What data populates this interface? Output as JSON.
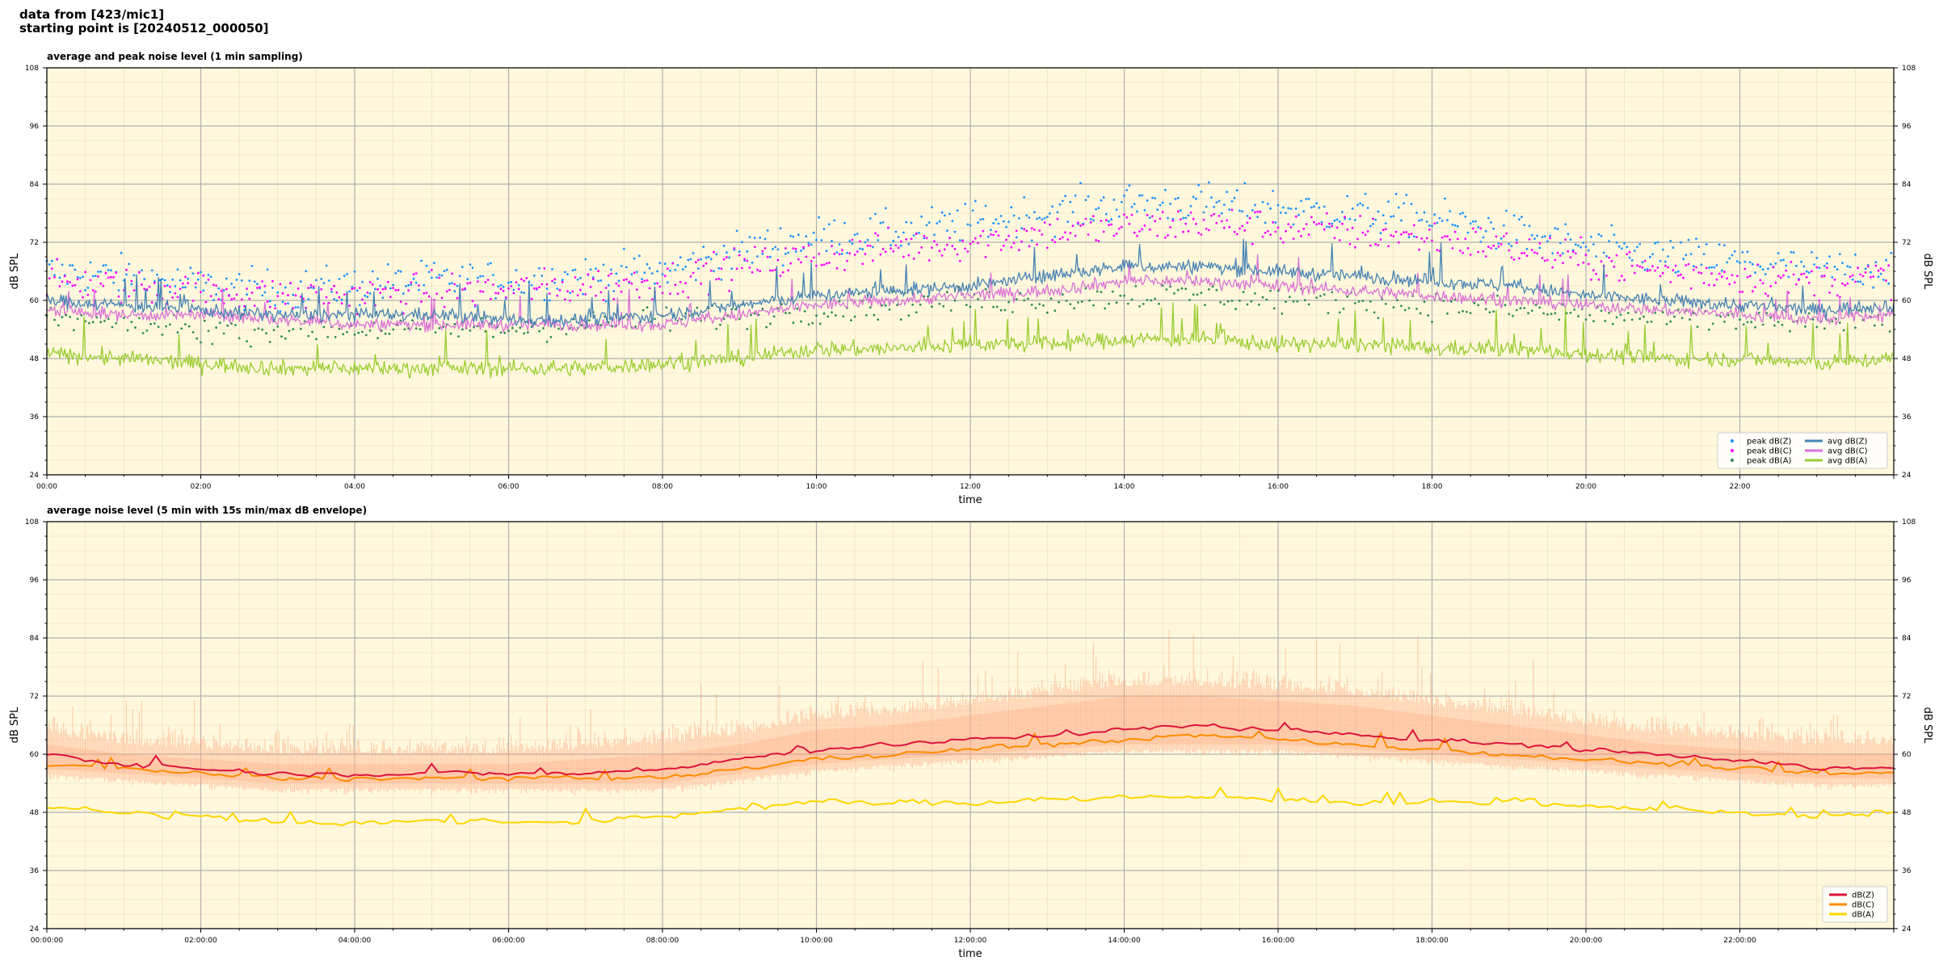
{
  "header": {
    "line1": "data from [423/mic1]",
    "line2": "starting point is [20240512_000050]"
  },
  "colors": {
    "plot_bg": "#fff8dc",
    "peak_z": "#1e90ff",
    "peak_c": "#ff00ff",
    "peak_a": "#2e8b57",
    "avg_z": "#4682b4",
    "avg_c": "#da70d6",
    "avg_a": "#9acd32",
    "dbz": "#dc143c",
    "dbc": "#ff8c00",
    "dba": "#ffd700",
    "envelope": "#ffa07a"
  },
  "chart_data": [
    {
      "type": "line",
      "title": "average and peak noise level (1 min sampling)",
      "xlabel": "time",
      "ylabel": "dB SPL",
      "ylabel_right": "dB SPL",
      "xlim_hours": [
        0,
        24
      ],
      "ylim": [
        24,
        108
      ],
      "yticks": [
        24,
        36,
        48,
        60,
        72,
        84,
        96,
        108
      ],
      "xtick_labels": [
        "00:00",
        "02:00",
        "04:00",
        "06:00",
        "08:00",
        "10:00",
        "12:00",
        "14:00",
        "16:00",
        "18:00",
        "20:00",
        "22:00"
      ],
      "grid": true,
      "legend_position": "lower-right",
      "legend": [
        {
          "label": "peak dB(Z)",
          "kind": "dot",
          "color": "#1e90ff"
        },
        {
          "label": "peak dB(C)",
          "kind": "dot",
          "color": "#ff00ff"
        },
        {
          "label": "peak dB(A)",
          "kind": "dot",
          "color": "#2e8b57"
        },
        {
          "label": "avg dB(Z)",
          "kind": "line",
          "color": "#4682b4"
        },
        {
          "label": "avg dB(C)",
          "kind": "line",
          "color": "#da70d6"
        },
        {
          "label": "avg dB(A)",
          "kind": "line",
          "color": "#9acd32"
        }
      ],
      "hours": [
        0,
        1,
        2,
        3,
        4,
        5,
        6,
        7,
        8,
        9,
        10,
        11,
        12,
        13,
        14,
        15,
        16,
        17,
        18,
        19,
        20,
        21,
        22,
        23,
        24
      ],
      "series": [
        {
          "name": "avg dB(Z)",
          "values": [
            60,
            59,
            58,
            57,
            57,
            57,
            56,
            56,
            57,
            59,
            61,
            62,
            63,
            65,
            67,
            67,
            66,
            65,
            64,
            63,
            61,
            60,
            59,
            58,
            59
          ]
        },
        {
          "name": "avg dB(C)",
          "values": [
            58,
            57,
            57,
            56,
            55,
            55,
            55,
            55,
            55,
            57,
            59,
            60,
            61,
            62,
            64,
            64,
            63,
            62,
            61,
            60,
            59,
            58,
            57,
            56,
            57
          ]
        },
        {
          "name": "avg dB(A)",
          "values": [
            49,
            48,
            47,
            46,
            46,
            46,
            46,
            46,
            47,
            48,
            50,
            50,
            51,
            51,
            52,
            52,
            51,
            51,
            50,
            50,
            49,
            48,
            48,
            47,
            48
          ]
        },
        {
          "name": "peak dB(Z)",
          "values": [
            66,
            65,
            63,
            62,
            63,
            64,
            64,
            65,
            66,
            70,
            73,
            74,
            76,
            78,
            80,
            80,
            79,
            78,
            77,
            74,
            71,
            69,
            68,
            66,
            67
          ]
        },
        {
          "name": "peak dB(C)",
          "values": [
            64,
            63,
            62,
            61,
            61,
            62,
            62,
            63,
            64,
            67,
            69,
            71,
            72,
            74,
            75,
            76,
            75,
            74,
            73,
            71,
            68,
            66,
            65,
            64,
            65
          ]
        },
        {
          "name": "peak dB(A)",
          "values": [
            56,
            55,
            54,
            54,
            54,
            54,
            54,
            55,
            56,
            57,
            58,
            59,
            60,
            60,
            61,
            61,
            60,
            60,
            59,
            58,
            57,
            56,
            56,
            55,
            56
          ]
        }
      ]
    },
    {
      "type": "line",
      "title": "average noise level (5 min with 15s min/max dB envelope)",
      "xlabel": "time",
      "ylabel": "dB SPL",
      "ylabel_right": "dB SPL",
      "xlim_hours": [
        0,
        24
      ],
      "ylim": [
        24,
        108
      ],
      "yticks": [
        24,
        36,
        48,
        60,
        72,
        84,
        96,
        108
      ],
      "xtick_labels": [
        "00:00:00",
        "02:00:00",
        "04:00:00",
        "06:00:00",
        "08:00:00",
        "10:00:00",
        "12:00:00",
        "14:00:00",
        "16:00:00",
        "18:00:00",
        "20:00:00",
        "22:00:00"
      ],
      "grid": true,
      "legend_position": "lower-right",
      "legend": [
        {
          "label": "dB(Z)",
          "kind": "line",
          "color": "#dc143c"
        },
        {
          "label": "dB(C)",
          "kind": "line",
          "color": "#ff8c00"
        },
        {
          "label": "dB(A)",
          "kind": "line",
          "color": "#ffd700"
        }
      ],
      "hours": [
        0,
        1,
        2,
        3,
        4,
        5,
        6,
        7,
        8,
        9,
        10,
        11,
        12,
        13,
        14,
        15,
        16,
        17,
        18,
        19,
        20,
        21,
        22,
        23,
        24
      ],
      "series": [
        {
          "name": "dB(Z)",
          "values": [
            60,
            58,
            57,
            56,
            56,
            56,
            56,
            56,
            57,
            59,
            61,
            62,
            63,
            64,
            65,
            66,
            65,
            64,
            63,
            62,
            61,
            60,
            59,
            57,
            57
          ]
        },
        {
          "name": "dB(C)",
          "values": [
            58,
            57,
            56,
            55,
            55,
            55,
            55,
            55,
            55,
            57,
            59,
            60,
            61,
            62,
            63,
            64,
            63,
            62,
            61,
            60,
            59,
            58,
            57,
            56,
            56
          ]
        },
        {
          "name": "dB(A)",
          "values": [
            49,
            48,
            47,
            46,
            46,
            46,
            46,
            46,
            47,
            49,
            50,
            50,
            50,
            51,
            51,
            51,
            51,
            50,
            50,
            50,
            49,
            49,
            48,
            47,
            48
          ]
        },
        {
          "name": "envelope max",
          "values": [
            64,
            62,
            61,
            60,
            60,
            60,
            60,
            61,
            62,
            64,
            67,
            68,
            70,
            72,
            74,
            74,
            73,
            72,
            70,
            68,
            66,
            64,
            63,
            62,
            62
          ]
        },
        {
          "name": "envelope min",
          "values": [
            56,
            55,
            54,
            53,
            53,
            53,
            53,
            53,
            53,
            55,
            57,
            58,
            59,
            60,
            61,
            61,
            61,
            60,
            59,
            58,
            57,
            56,
            55,
            54,
            54
          ]
        }
      ]
    }
  ]
}
